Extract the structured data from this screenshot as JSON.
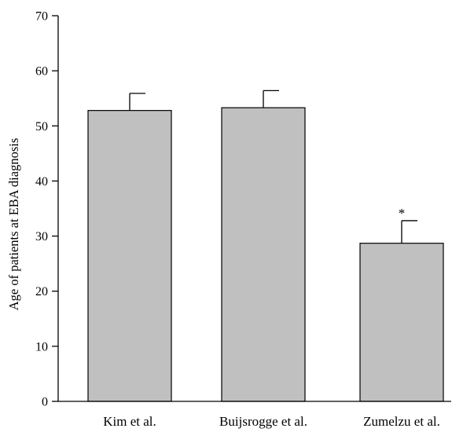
{
  "chart_data": {
    "type": "bar",
    "categories": [
      "Kim et al.",
      "Buijsrogge et al.",
      "Zumelzu et al."
    ],
    "values": [
      52.8,
      53.3,
      28.7
    ],
    "error_upper": [
      3.1,
      3.1,
      4.1
    ],
    "annotations": [
      "",
      "",
      "*"
    ],
    "title": "",
    "xlabel": "",
    "ylabel": "Age of patients at EBA diagnosis",
    "ylim": [
      0,
      70
    ],
    "yticks": [
      0,
      10,
      20,
      30,
      40,
      50,
      60,
      70
    ],
    "grid": false,
    "bar_color": "#c0c0c0"
  }
}
